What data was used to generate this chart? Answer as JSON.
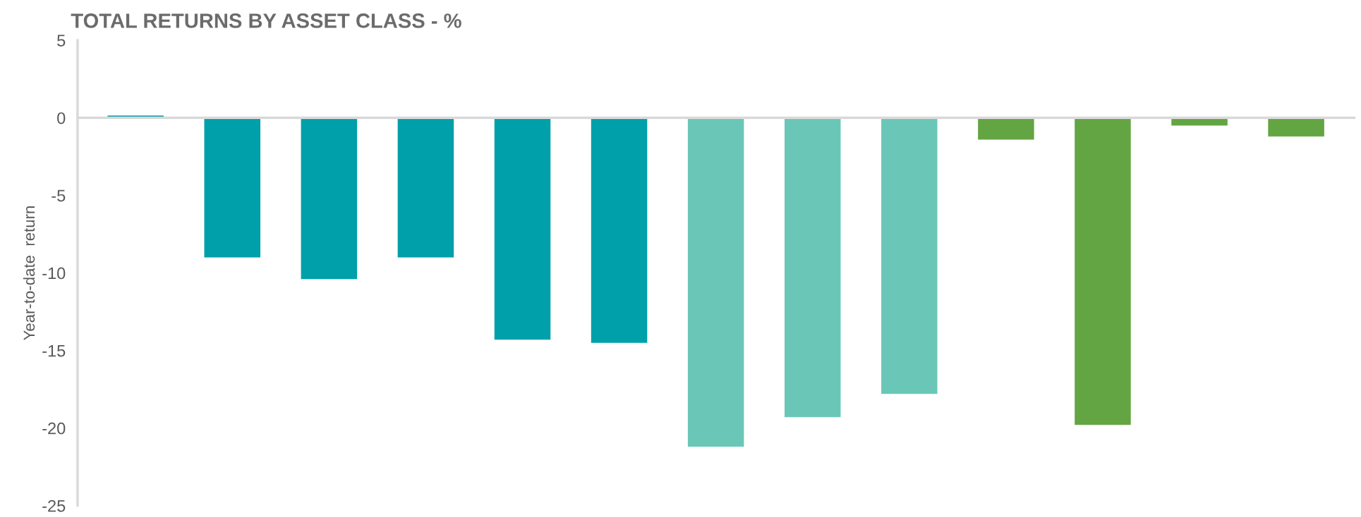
{
  "chart_data": {
    "type": "bar",
    "title": "TOTAL RETURNS BY ASSET CLASS - %",
    "ylabel": "Year-to-date  return",
    "categories": [
      null,
      null,
      null,
      null,
      null,
      null,
      null,
      null,
      null,
      null,
      null,
      null,
      null
    ],
    "values": [
      0.15,
      -9.0,
      -10.4,
      -9.0,
      -14.3,
      -14.5,
      -21.2,
      -19.3,
      -17.8,
      -1.4,
      -19.8,
      -0.5,
      -1.2
    ],
    "colors": [
      "#00a0aa",
      "#00a0aa",
      "#00a0aa",
      "#00a0aa",
      "#00a0aa",
      "#00a0aa",
      "#6ac7b8",
      "#6ac7b8",
      "#6ac7b8",
      "#63a542",
      "#63a542",
      "#63a542",
      "#63a542"
    ],
    "ylim": [
      -25,
      5
    ],
    "yticks": [
      -25,
      -20,
      -15,
      -10,
      -5,
      0,
      5
    ]
  }
}
